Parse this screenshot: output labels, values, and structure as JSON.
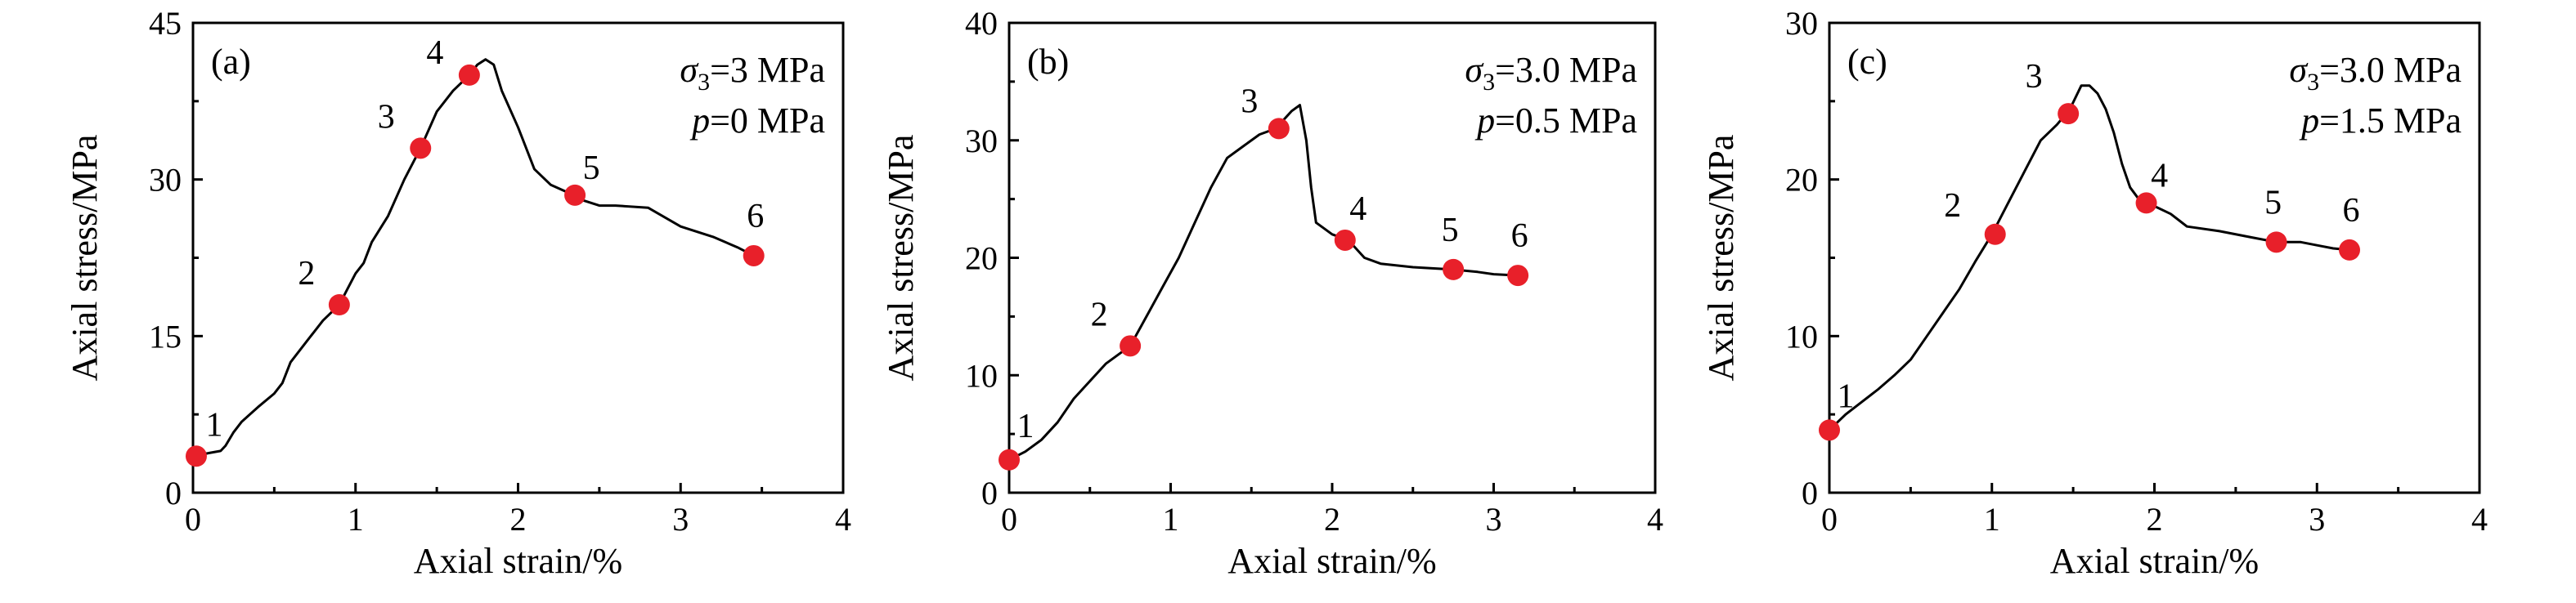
{
  "chart_data": [
    {
      "type": "line",
      "panel_label": "(a)",
      "conditions": [
        {
          "symbol": "σ",
          "sub": "3",
          "value": "=3 MPa"
        },
        {
          "symbol": "p",
          "sub": "",
          "value": "=0 MPa"
        }
      ],
      "xlabel": "Axial strain/%",
      "ylabel": "Axial stress/MPa",
      "xlim": [
        0,
        4
      ],
      "ylim": [
        0,
        45
      ],
      "xticks": [
        0,
        1,
        2,
        3,
        4
      ],
      "yticks": [
        0,
        15,
        30,
        45
      ],
      "grid": false,
      "curve": {
        "x": [
          0.0,
          0.1,
          0.17,
          0.2,
          0.25,
          0.3,
          0.4,
          0.5,
          0.55,
          0.6,
          0.7,
          0.8,
          0.9,
          0.95,
          1.0,
          1.05,
          1.1,
          1.2,
          1.3,
          1.4,
          1.5,
          1.6,
          1.7,
          1.75,
          1.8,
          1.85,
          1.9,
          2.0,
          2.1,
          2.2,
          2.3,
          2.35,
          2.4,
          2.5,
          2.6,
          2.8,
          3.0,
          3.2,
          3.35,
          3.45
        ],
        "y": [
          3.5,
          3.8,
          4.0,
          4.5,
          5.8,
          6.8,
          8.2,
          9.5,
          10.5,
          12.5,
          14.5,
          16.5,
          18.0,
          19.5,
          21.0,
          22.0,
          24.0,
          26.5,
          30.0,
          33.0,
          36.5,
          38.5,
          40.0,
          41.0,
          41.5,
          41.0,
          38.5,
          35.0,
          31.0,
          29.5,
          28.8,
          28.5,
          28.0,
          27.5,
          27.5,
          27.3,
          25.5,
          24.5,
          23.5,
          22.7
        ]
      },
      "points": [
        {
          "label": "1",
          "x": 0.02,
          "y": 3.5
        },
        {
          "label": "2",
          "x": 0.9,
          "y": 18.0
        },
        {
          "label": "3",
          "x": 1.4,
          "y": 33.0
        },
        {
          "label": "4",
          "x": 1.7,
          "y": 40.0
        },
        {
          "label": "5",
          "x": 2.35,
          "y": 28.5
        },
        {
          "label": "6",
          "x": 3.45,
          "y": 22.7
        }
      ]
    },
    {
      "type": "line",
      "panel_label": "(b)",
      "conditions": [
        {
          "symbol": "σ",
          "sub": "3",
          "value": "=3.0 MPa"
        },
        {
          "symbol": "p",
          "sub": "",
          "value": "=0.5 MPa"
        }
      ],
      "xlabel": "Axial strain/%",
      "ylabel": "Axial stress/MPa",
      "xlim": [
        0,
        4
      ],
      "ylim": [
        0,
        40
      ],
      "xticks": [
        0,
        1,
        2,
        3,
        4
      ],
      "yticks": [
        0,
        10,
        20,
        30,
        40
      ],
      "grid": false,
      "curve": {
        "x": [
          0.0,
          0.1,
          0.2,
          0.3,
          0.4,
          0.5,
          0.6,
          0.75,
          0.85,
          0.95,
          1.05,
          1.15,
          1.25,
          1.35,
          1.45,
          1.55,
          1.65,
          1.75,
          1.8,
          1.84,
          1.87,
          1.9,
          1.95,
          2.0,
          2.1,
          2.2,
          2.3,
          2.5,
          2.75,
          2.9,
          3.0,
          3.15
        ],
        "y": [
          2.8,
          3.5,
          4.5,
          6.0,
          8.0,
          9.5,
          11.0,
          12.5,
          15.0,
          17.5,
          20.0,
          23.0,
          26.0,
          28.5,
          29.5,
          30.5,
          31.0,
          32.5,
          33.0,
          30.0,
          26.0,
          23.0,
          22.5,
          22.0,
          21.5,
          20.0,
          19.5,
          19.2,
          19.0,
          18.8,
          18.6,
          18.5
        ]
      },
      "points": [
        {
          "label": "1",
          "x": 0.0,
          "y": 2.8
        },
        {
          "label": "2",
          "x": 0.75,
          "y": 12.5
        },
        {
          "label": "3",
          "x": 1.67,
          "y": 31.0
        },
        {
          "label": "4",
          "x": 2.08,
          "y": 21.5
        },
        {
          "label": "5",
          "x": 2.75,
          "y": 19.0
        },
        {
          "label": "6",
          "x": 3.15,
          "y": 18.5
        }
      ]
    },
    {
      "type": "line",
      "panel_label": "(c)",
      "conditions": [
        {
          "symbol": "σ",
          "sub": "3",
          "value": "=3.0 MPa"
        },
        {
          "symbol": "p",
          "sub": "",
          "value": "=1.5 MPa"
        }
      ],
      "xlabel": "Axial strain/%",
      "ylabel": "Axial stress/MPa",
      "xlim": [
        0,
        4
      ],
      "ylim": [
        0,
        30
      ],
      "xticks": [
        0,
        1,
        2,
        3,
        4
      ],
      "yticks": [
        0,
        10,
        20,
        30
      ],
      "grid": false,
      "curve": {
        "x": [
          0.0,
          0.1,
          0.2,
          0.3,
          0.4,
          0.5,
          0.6,
          0.7,
          0.8,
          0.9,
          1.0,
          1.1,
          1.2,
          1.3,
          1.4,
          1.48,
          1.55,
          1.6,
          1.65,
          1.7,
          1.75,
          1.8,
          1.85,
          1.9,
          1.95,
          2.0,
          2.1,
          2.2,
          2.4,
          2.6,
          2.75,
          2.9,
          3.0,
          3.1,
          3.2
        ],
        "y": [
          4.0,
          5.0,
          5.8,
          6.6,
          7.5,
          8.5,
          10.0,
          11.5,
          13.0,
          14.8,
          16.5,
          18.5,
          20.5,
          22.5,
          23.5,
          24.5,
          26.0,
          26.0,
          25.5,
          24.5,
          23.0,
          21.0,
          19.5,
          18.8,
          18.5,
          18.3,
          17.8,
          17.0,
          16.7,
          16.3,
          16.0,
          16.0,
          15.8,
          15.6,
          15.5
        ]
      },
      "points": [
        {
          "label": "1",
          "x": 0.0,
          "y": 4.0
        },
        {
          "label": "2",
          "x": 1.02,
          "y": 16.5
        },
        {
          "label": "3",
          "x": 1.47,
          "y": 24.2
        },
        {
          "label": "4",
          "x": 1.95,
          "y": 18.5
        },
        {
          "label": "5",
          "x": 2.75,
          "y": 16.0
        },
        {
          "label": "6",
          "x": 3.2,
          "y": 15.5
        }
      ]
    }
  ]
}
